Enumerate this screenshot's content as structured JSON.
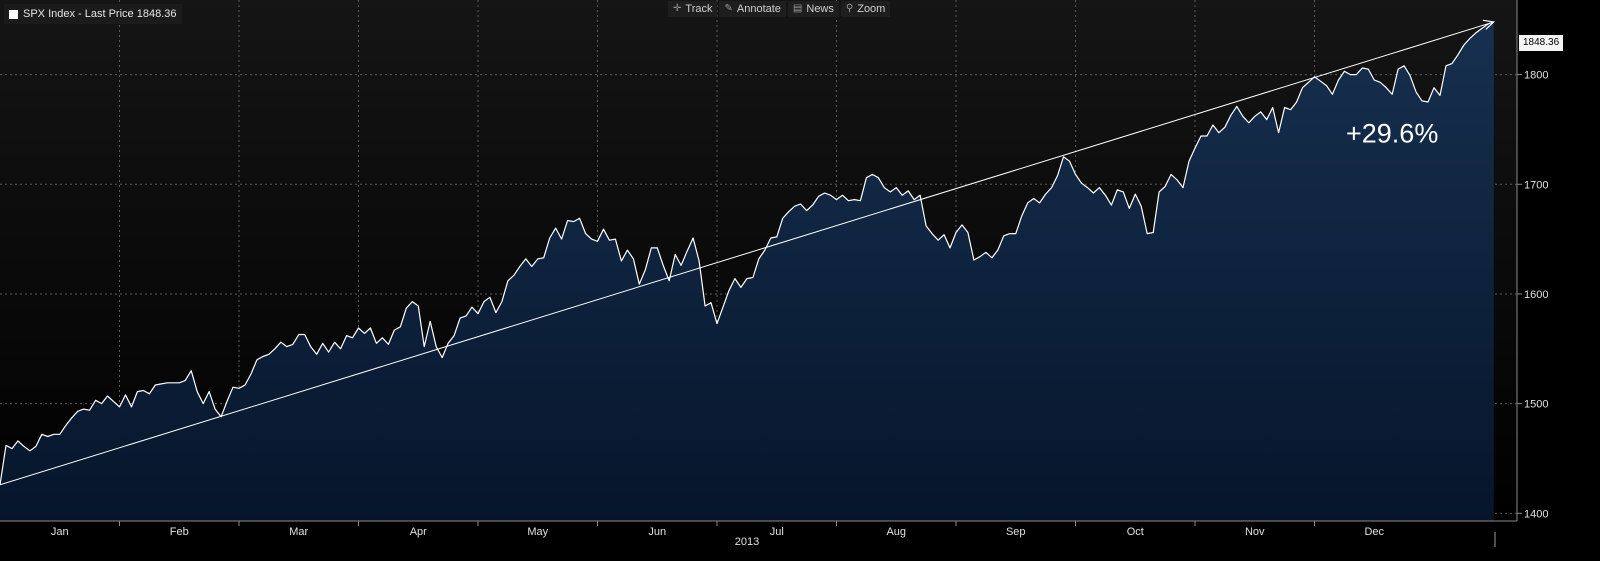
{
  "legend": {
    "label": "SPX Index - Last Price 1848.36"
  },
  "toolbar": {
    "items": [
      {
        "label": "Track",
        "icon": "crosshair-icon"
      },
      {
        "label": "Annotate",
        "icon": "pencil-icon"
      },
      {
        "label": "News",
        "icon": "news-icon"
      },
      {
        "label": "Zoom",
        "icon": "magnifier-icon"
      }
    ]
  },
  "last_price_label": "1848.36",
  "colors": {
    "background": "#000000",
    "plot_background_top": "#121212",
    "area_fill_top": "#16304f",
    "area_fill_bottom": "#06152b",
    "line": "#ffffff",
    "grid": "#5a5a5a",
    "text": "#e0e0e0"
  },
  "chart_data": {
    "type": "area",
    "title": "SPX Index - Last Price 1848.36",
    "xlabel": "2013",
    "ylabel": "",
    "x_tick_labels": [
      "Jan",
      "Feb",
      "Mar",
      "Apr",
      "May",
      "Jun",
      "Jul",
      "Aug",
      "Sep",
      "Oct",
      "Nov",
      "Dec"
    ],
    "y_ticks": [
      1400,
      1500,
      1600,
      1700,
      1800
    ],
    "ylim": [
      1393,
      1868
    ],
    "grid": true,
    "x_unit": "month index (0 = start of Jan 2013, 12 = end of Dec 2013)",
    "series": [
      {
        "name": "SPX Index",
        "points": [
          [
            0.0,
            1426
          ],
          [
            0.05,
            1462
          ],
          [
            0.1,
            1459
          ],
          [
            0.15,
            1466
          ],
          [
            0.2,
            1461
          ],
          [
            0.25,
            1457
          ],
          [
            0.3,
            1461
          ],
          [
            0.35,
            1472
          ],
          [
            0.4,
            1470
          ],
          [
            0.45,
            1472
          ],
          [
            0.5,
            1472
          ],
          [
            0.55,
            1480
          ],
          [
            0.6,
            1487
          ],
          [
            0.65,
            1493
          ],
          [
            0.7,
            1495
          ],
          [
            0.75,
            1494
          ],
          [
            0.8,
            1503
          ],
          [
            0.85,
            1500
          ],
          [
            0.9,
            1507
          ],
          [
            0.95,
            1502
          ],
          [
            1.0,
            1497
          ],
          [
            1.05,
            1508
          ],
          [
            1.1,
            1497
          ],
          [
            1.15,
            1511
          ],
          [
            1.2,
            1512
          ],
          [
            1.25,
            1509
          ],
          [
            1.3,
            1517
          ],
          [
            1.35,
            1518
          ],
          [
            1.4,
            1519
          ],
          [
            1.45,
            1519
          ],
          [
            1.5,
            1519
          ],
          [
            1.55,
            1521
          ],
          [
            1.6,
            1530
          ],
          [
            1.65,
            1511
          ],
          [
            1.7,
            1500
          ],
          [
            1.75,
            1511
          ],
          [
            1.8,
            1495
          ],
          [
            1.85,
            1488
          ],
          [
            1.9,
            1502
          ],
          [
            1.95,
            1515
          ],
          [
            2.0,
            1514
          ],
          [
            2.05,
            1517
          ],
          [
            2.1,
            1527
          ],
          [
            2.15,
            1540
          ],
          [
            2.2,
            1543
          ],
          [
            2.25,
            1545
          ],
          [
            2.3,
            1550
          ],
          [
            2.35,
            1556
          ],
          [
            2.4,
            1552
          ],
          [
            2.45,
            1554
          ],
          [
            2.5,
            1563
          ],
          [
            2.55,
            1563
          ],
          [
            2.6,
            1552
          ],
          [
            2.65,
            1545
          ],
          [
            2.7,
            1555
          ],
          [
            2.75,
            1547
          ],
          [
            2.8,
            1556
          ],
          [
            2.85,
            1550
          ],
          [
            2.9,
            1562
          ],
          [
            2.95,
            1560
          ],
          [
            3.0,
            1569
          ],
          [
            3.05,
            1564
          ],
          [
            3.1,
            1569
          ],
          [
            3.15,
            1555
          ],
          [
            3.2,
            1560
          ],
          [
            3.25,
            1554
          ],
          [
            3.3,
            1567
          ],
          [
            3.35,
            1570
          ],
          [
            3.4,
            1587
          ],
          [
            3.45,
            1593
          ],
          [
            3.5,
            1589
          ],
          [
            3.55,
            1552
          ],
          [
            3.6,
            1575
          ],
          [
            3.65,
            1552
          ],
          [
            3.7,
            1542
          ],
          [
            3.75,
            1555
          ],
          [
            3.8,
            1562
          ],
          [
            3.85,
            1578
          ],
          [
            3.9,
            1580
          ],
          [
            3.95,
            1588
          ],
          [
            4.0,
            1582
          ],
          [
            4.05,
            1593
          ],
          [
            4.1,
            1597
          ],
          [
            4.15,
            1583
          ],
          [
            4.2,
            1593
          ],
          [
            4.25,
            1612
          ],
          [
            4.3,
            1617
          ],
          [
            4.35,
            1625
          ],
          [
            4.4,
            1632
          ],
          [
            4.45,
            1625
          ],
          [
            4.5,
            1632
          ],
          [
            4.55,
            1633
          ],
          [
            4.6,
            1651
          ],
          [
            4.65,
            1660
          ],
          [
            4.7,
            1650
          ],
          [
            4.75,
            1667
          ],
          [
            4.8,
            1666
          ],
          [
            4.85,
            1669
          ],
          [
            4.9,
            1655
          ],
          [
            4.95,
            1650
          ],
          [
            5.0,
            1648
          ],
          [
            5.05,
            1659
          ],
          [
            5.1,
            1649
          ],
          [
            5.15,
            1650
          ],
          [
            5.2,
            1630
          ],
          [
            5.25,
            1640
          ],
          [
            5.3,
            1632
          ],
          [
            5.35,
            1609
          ],
          [
            5.4,
            1622
          ],
          [
            5.45,
            1642
          ],
          [
            5.5,
            1642
          ],
          [
            5.55,
            1626
          ],
          [
            5.6,
            1612
          ],
          [
            5.65,
            1636
          ],
          [
            5.7,
            1626
          ],
          [
            5.75,
            1639
          ],
          [
            5.8,
            1651
          ],
          [
            5.85,
            1630
          ],
          [
            5.9,
            1589
          ],
          [
            5.95,
            1592
          ],
          [
            6.0,
            1573
          ],
          [
            6.05,
            1588
          ],
          [
            6.1,
            1603
          ],
          [
            6.15,
            1614
          ],
          [
            6.2,
            1606
          ],
          [
            6.25,
            1614
          ],
          [
            6.3,
            1615
          ],
          [
            6.35,
            1632
          ],
          [
            6.4,
            1640
          ],
          [
            6.45,
            1651
          ],
          [
            6.5,
            1652
          ],
          [
            6.55,
            1669
          ],
          [
            6.6,
            1675
          ],
          [
            6.65,
            1680
          ],
          [
            6.7,
            1682
          ],
          [
            6.75,
            1676
          ],
          [
            6.8,
            1681
          ],
          [
            6.85,
            1689
          ],
          [
            6.9,
            1692
          ],
          [
            6.95,
            1690
          ],
          [
            7.0,
            1686
          ],
          [
            7.05,
            1690
          ],
          [
            7.1,
            1685
          ],
          [
            7.15,
            1686
          ],
          [
            7.2,
            1685
          ],
          [
            7.25,
            1706
          ],
          [
            7.3,
            1709
          ],
          [
            7.35,
            1706
          ],
          [
            7.4,
            1697
          ],
          [
            7.45,
            1693
          ],
          [
            7.5,
            1697
          ],
          [
            7.55,
            1690
          ],
          [
            7.6,
            1694
          ],
          [
            7.65,
            1686
          ],
          [
            7.7,
            1690
          ],
          [
            7.75,
            1662
          ],
          [
            7.8,
            1655
          ],
          [
            7.85,
            1649
          ],
          [
            7.9,
            1654
          ],
          [
            7.95,
            1642
          ],
          [
            8.0,
            1656
          ],
          [
            8.05,
            1663
          ],
          [
            8.1,
            1656
          ],
          [
            8.15,
            1631
          ],
          [
            8.2,
            1634
          ],
          [
            8.25,
            1638
          ],
          [
            8.3,
            1633
          ],
          [
            8.35,
            1640
          ],
          [
            8.4,
            1653
          ],
          [
            8.45,
            1655
          ],
          [
            8.5,
            1655
          ],
          [
            8.55,
            1671
          ],
          [
            8.6,
            1683
          ],
          [
            8.65,
            1687
          ],
          [
            8.7,
            1683
          ],
          [
            8.75,
            1691
          ],
          [
            8.8,
            1697
          ],
          [
            8.85,
            1708
          ],
          [
            8.9,
            1725
          ],
          [
            8.95,
            1721
          ],
          [
            9.0,
            1709
          ],
          [
            9.05,
            1701
          ],
          [
            9.1,
            1697
          ],
          [
            9.15,
            1692
          ],
          [
            9.2,
            1697
          ],
          [
            9.25,
            1690
          ],
          [
            9.3,
            1681
          ],
          [
            9.35,
            1695
          ],
          [
            9.4,
            1693
          ],
          [
            9.45,
            1678
          ],
          [
            9.5,
            1691
          ],
          [
            9.55,
            1680
          ],
          [
            9.6,
            1655
          ],
          [
            9.65,
            1656
          ],
          [
            9.7,
            1693
          ],
          [
            9.75,
            1698
          ],
          [
            9.8,
            1709
          ],
          [
            9.85,
            1704
          ],
          [
            9.9,
            1697
          ],
          [
            9.95,
            1721
          ],
          [
            10.0,
            1733
          ],
          [
            10.05,
            1744
          ],
          [
            10.1,
            1744
          ],
          [
            10.15,
            1754
          ],
          [
            10.2,
            1747
          ],
          [
            10.25,
            1752
          ],
          [
            10.3,
            1763
          ],
          [
            10.35,
            1771
          ],
          [
            10.4,
            1762
          ],
          [
            10.45,
            1756
          ],
          [
            10.5,
            1762
          ],
          [
            10.55,
            1766
          ],
          [
            10.6,
            1759
          ],
          [
            10.65,
            1770
          ],
          [
            10.7,
            1747
          ],
          [
            10.75,
            1770
          ],
          [
            10.8,
            1768
          ],
          [
            10.85,
            1775
          ],
          [
            10.9,
            1788
          ],
          [
            10.95,
            1793
          ],
          [
            11.0,
            1798
          ],
          [
            11.05,
            1794
          ],
          [
            11.1,
            1790
          ],
          [
            11.15,
            1782
          ],
          [
            11.2,
            1795
          ],
          [
            11.25,
            1803
          ],
          [
            11.3,
            1800
          ],
          [
            11.35,
            1800
          ],
          [
            11.4,
            1806
          ],
          [
            11.45,
            1805
          ],
          [
            11.5,
            1795
          ],
          [
            11.55,
            1793
          ],
          [
            11.6,
            1788
          ],
          [
            11.65,
            1782
          ],
          [
            11.7,
            1805
          ],
          [
            11.75,
            1808
          ],
          [
            11.8,
            1799
          ],
          [
            11.85,
            1784
          ],
          [
            11.9,
            1776
          ],
          [
            11.95,
            1775
          ],
          [
            12.0,
            1788
          ],
          [
            12.05,
            1781
          ],
          [
            12.1,
            1808
          ],
          [
            12.15,
            1810
          ],
          [
            12.2,
            1818
          ],
          [
            12.25,
            1827
          ],
          [
            12.3,
            1833
          ],
          [
            12.35,
            1838
          ],
          [
            12.4,
            1842
          ],
          [
            12.45,
            1846
          ],
          [
            12.5,
            1848
          ]
        ]
      }
    ],
    "trend_line": {
      "from": [
        0.0,
        1426
      ],
      "to": [
        12.5,
        1848
      ]
    },
    "annotations": [
      {
        "text": "+29.6%",
        "x": 11.65,
        "y": 1738
      }
    ]
  }
}
